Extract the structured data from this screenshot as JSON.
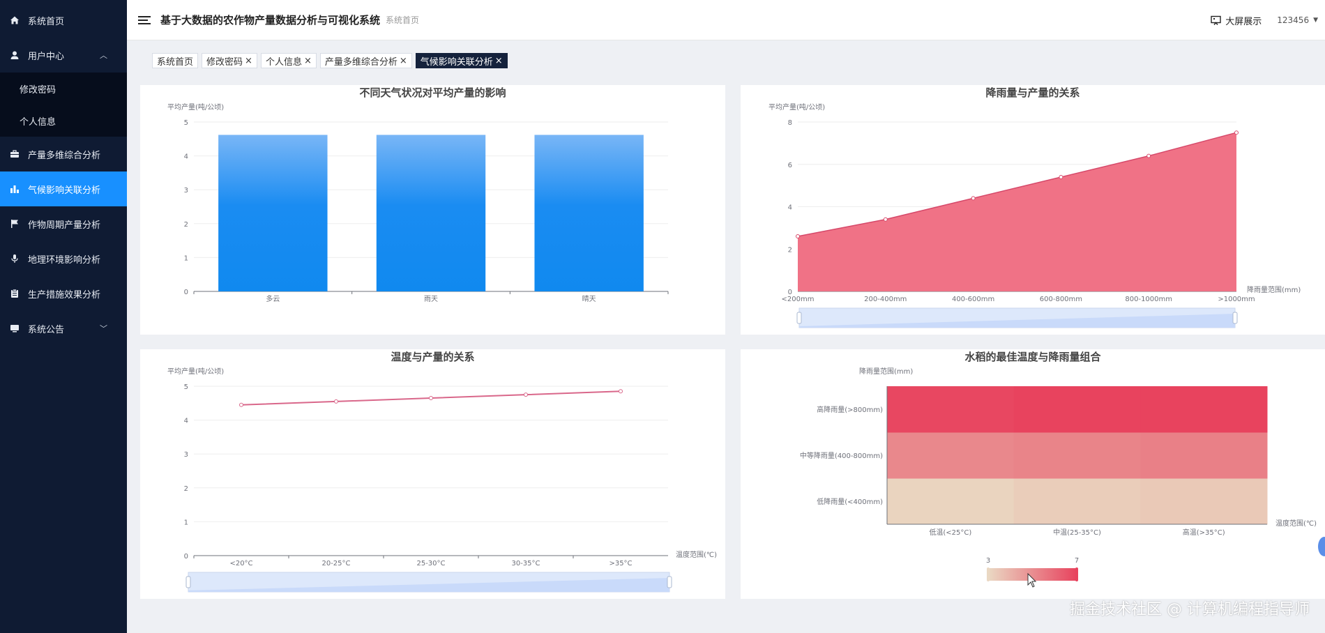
{
  "sidebar": {
    "items": [
      {
        "label": "系统首页",
        "icon": "home-icon"
      },
      {
        "label": "用户中心",
        "icon": "user-icon",
        "expanded": true,
        "children": [
          "修改密码",
          "个人信息"
        ]
      },
      {
        "label": "产量多维综合分析",
        "icon": "briefcase-icon"
      },
      {
        "label": "气候影响关联分析",
        "icon": "bar-chart-icon",
        "active": true
      },
      {
        "label": "作物周期产量分析",
        "icon": "flag-icon"
      },
      {
        "label": "地理环境影响分析",
        "icon": "microphone-icon"
      },
      {
        "label": "生产措施效果分析",
        "icon": "clipboard-icon"
      },
      {
        "label": "系统公告",
        "icon": "monitor-icon"
      }
    ]
  },
  "header": {
    "title": "基于大数据的农作物产量数据分析与可视化系统",
    "breadcrumb": "系统首页",
    "bigscreen_label": "大屏展示",
    "username": "123456"
  },
  "tags": [
    {
      "label": "系统首页",
      "closable": false,
      "active": false
    },
    {
      "label": "修改密码",
      "closable": true,
      "active": false
    },
    {
      "label": "个人信息",
      "closable": true,
      "active": false
    },
    {
      "label": "产量多维综合分析",
      "closable": true,
      "active": false
    },
    {
      "label": "气候影响关联分析",
      "closable": true,
      "active": true
    }
  ],
  "close_symbol": "×",
  "watermark": "掘金技术社区 @ 计算机编程指导师",
  "colors": {
    "sidebar_bg": "#0f1b33",
    "active": "#1890ff",
    "bar": "#1890ff",
    "area": "#ee6a7f",
    "line": "#e0708a"
  },
  "chart_data": [
    {
      "type": "bar",
      "title": "不同天气状况对平均产量的影响",
      "ylabel": "平均产量(吨/公顷)",
      "categories": [
        "多云",
        "雨天",
        "晴天"
      ],
      "values": [
        4.62,
        4.62,
        4.62
      ],
      "ylim": [
        0,
        5
      ],
      "yticks": [
        0,
        1,
        2,
        3,
        4,
        5
      ]
    },
    {
      "type": "area",
      "title": "降雨量与产量的关系",
      "ylabel": "平均产量(吨/公顷)",
      "xlabel": "降雨量范围(mm)",
      "categories": [
        "<200mm",
        "200-400mm",
        "400-600mm",
        "600-800mm",
        "800-1000mm",
        ">1000mm"
      ],
      "values": [
        2.6,
        3.4,
        4.4,
        5.4,
        6.4,
        7.5
      ],
      "ylim": [
        0,
        8
      ],
      "yticks": [
        0,
        2,
        4,
        6,
        8
      ],
      "datazoom": true
    },
    {
      "type": "line",
      "title": "温度与产量的关系",
      "ylabel": "平均产量(吨/公顷)",
      "xlabel": "温度范围(℃)",
      "categories": [
        "<20°C",
        "20-25°C",
        "25-30°C",
        "30-35°C",
        ">35°C"
      ],
      "values": [
        4.45,
        4.55,
        4.65,
        4.75,
        4.85
      ],
      "ylim": [
        0,
        5
      ],
      "yticks": [
        0,
        1,
        2,
        3,
        4,
        5
      ],
      "datazoom": true
    },
    {
      "type": "heatmap",
      "title": "水稻的最佳温度与降雨量组合",
      "ylabel": "降雨量范围(mm)",
      "xlabel": "温度范围(℃)",
      "x_categories": [
        "低温(<25°C)",
        "中温(25-35°C)",
        "高温(>35°C)"
      ],
      "y_categories": [
        "低降雨量(<400mm)",
        "中等降雨量(400-800mm)",
        "高降雨量(>800mm)"
      ],
      "values": [
        [
          3.2,
          3.4,
          3.5
        ],
        [
          5.2,
          5.3,
          5.4
        ],
        [
          6.9,
          7.0,
          7.0
        ]
      ],
      "visual_min": 3,
      "visual_max": 7,
      "visual_min_label": "3",
      "visual_max_label": "7"
    }
  ]
}
